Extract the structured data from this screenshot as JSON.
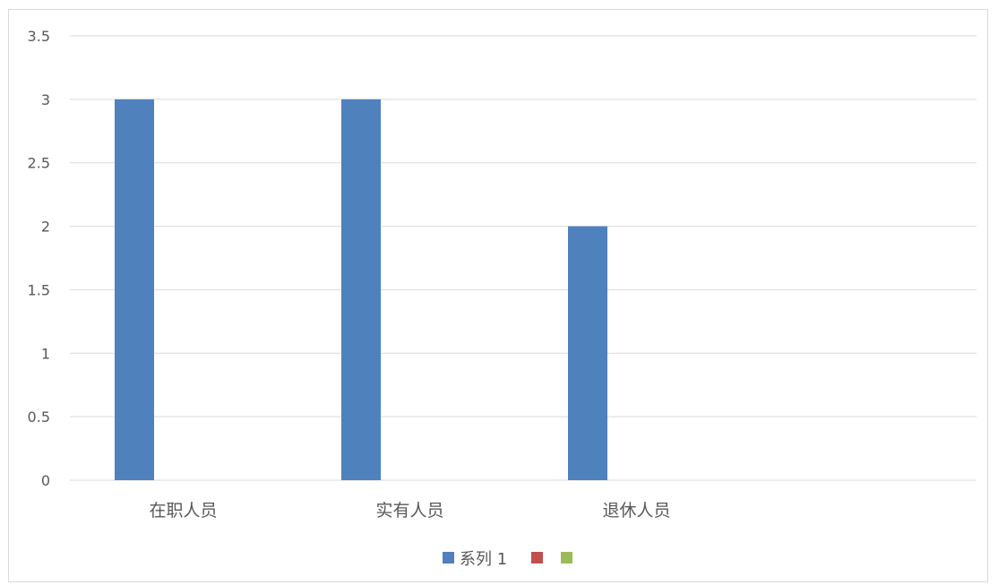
{
  "chart_data": {
    "type": "bar",
    "categories": [
      "在职人员",
      "实有人员",
      "退休人员",
      ""
    ],
    "series": [
      {
        "name": "系列 1",
        "color": "#4f81bd",
        "values": [
          3,
          3,
          2,
          null
        ]
      },
      {
        "name": "",
        "color": "#c0504d",
        "values": [
          null,
          null,
          null,
          null
        ]
      },
      {
        "name": "",
        "color": "#9bbb59",
        "values": [
          null,
          null,
          null,
          null
        ]
      }
    ],
    "title": "",
    "xlabel": "",
    "ylabel": "",
    "ylim": [
      0,
      3.5
    ],
    "yticks": [
      "0",
      "0.5",
      "1",
      "1.5",
      "2",
      "2.5",
      "3",
      "3.5"
    ],
    "grid": true,
    "legend_position": "bottom"
  }
}
